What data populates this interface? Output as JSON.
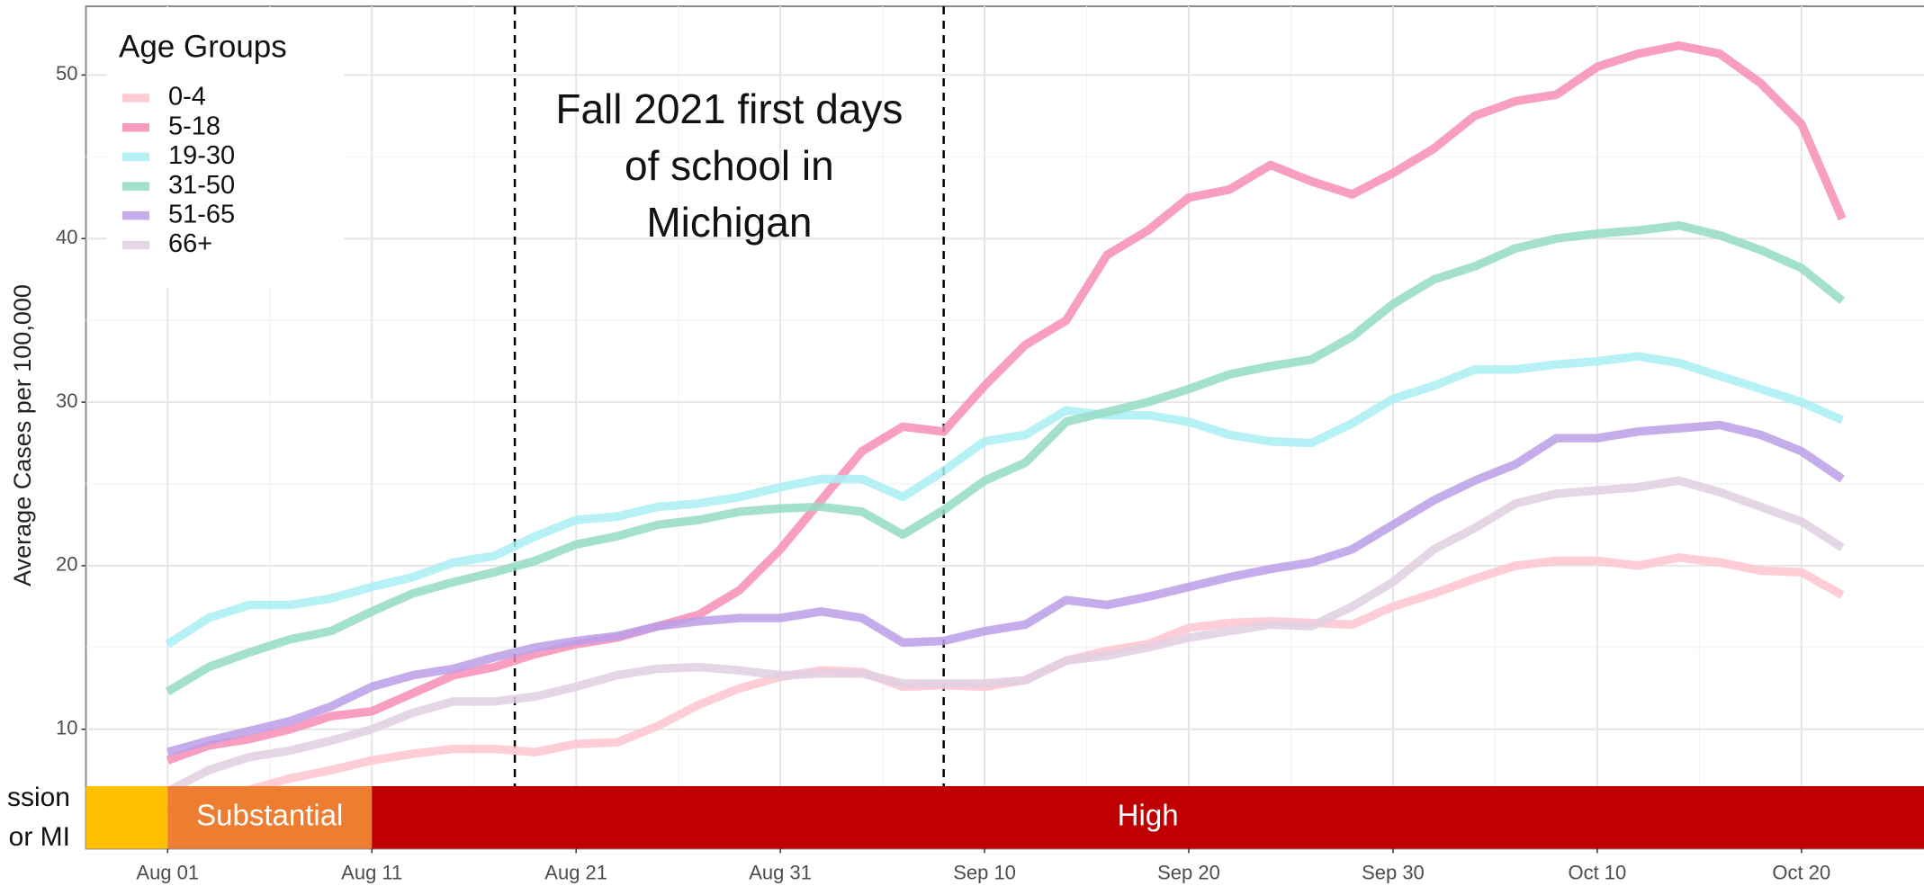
{
  "chart_data": {
    "type": "line",
    "ylabel": "Average Cases per 100,000",
    "legend_title": "Age Groups",
    "legend": "top-left",
    "grid": true,
    "minor_grid": true,
    "annotation": [
      "Fall 2021 first days",
      "of school in",
      "Michigan"
    ],
    "vlines": [
      "Aug 18",
      "Sep 08"
    ],
    "x": [
      "Aug 01",
      "Aug 03",
      "Aug 05",
      "Aug 07",
      "Aug 09",
      "Aug 11",
      "Aug 13",
      "Aug 15",
      "Aug 17",
      "Aug 19",
      "Aug 21",
      "Aug 23",
      "Aug 25",
      "Aug 27",
      "Aug 29",
      "Aug 31",
      "Sep 02",
      "Sep 04",
      "Sep 06",
      "Sep 08",
      "Sep 10",
      "Sep 12",
      "Sep 14",
      "Sep 16",
      "Sep 18",
      "Sep 20",
      "Sep 22",
      "Sep 24",
      "Sep 26",
      "Sep 28",
      "Sep 30",
      "Oct 02",
      "Oct 04",
      "Oct 06",
      "Oct 08",
      "Oct 10",
      "Oct 12",
      "Oct 14",
      "Oct 16",
      "Oct 18",
      "Oct 20",
      "Oct 22"
    ],
    "xlim": [
      "Jul 28",
      "Oct 26"
    ],
    "xticks": [
      "Aug 01",
      "Aug 11",
      "Aug 21",
      "Aug 31",
      "Sep 10",
      "Sep 20",
      "Sep 30",
      "Oct 10",
      "Oct 20"
    ],
    "ylim": [
      2.7,
      54.2
    ],
    "yticks": [
      10,
      20,
      30,
      40,
      50
    ],
    "series": [
      {
        "name": "0-4",
        "color": "#ffc4cf",
        "values": [
          5.0,
          5.6,
          6.3,
          7.0,
          7.5,
          8.1,
          8.5,
          8.8,
          8.8,
          8.6,
          9.1,
          9.2,
          10.2,
          11.5,
          12.5,
          13.2,
          13.6,
          13.5,
          12.6,
          12.7,
          12.6,
          13.0,
          14.2,
          14.8,
          15.2,
          16.2,
          16.5,
          16.6,
          16.5,
          16.4,
          17.5,
          18.3,
          19.2,
          20.0,
          20.3,
          20.3,
          20.0,
          20.5,
          20.2,
          19.7,
          19.6,
          18.2
        ]
      },
      {
        "name": "5-18",
        "color": "#f78db6",
        "values": [
          8.1,
          9.0,
          9.4,
          10.0,
          10.8,
          11.1,
          12.2,
          13.3,
          13.8,
          14.6,
          15.2,
          15.6,
          16.3,
          17.0,
          18.5,
          21.0,
          24.0,
          27.0,
          28.5,
          28.2,
          31.0,
          33.5,
          35.0,
          39.0,
          40.5,
          42.5,
          43.0,
          44.5,
          43.5,
          42.7,
          44.0,
          45.5,
          47.5,
          48.4,
          48.8,
          50.5,
          51.3,
          51.8,
          51.3,
          49.5,
          47.0,
          41.2
        ]
      },
      {
        "name": "19-30",
        "color": "#a8eef3",
        "values": [
          15.2,
          16.8,
          17.6,
          17.6,
          18.0,
          18.7,
          19.3,
          20.2,
          20.6,
          21.8,
          22.8,
          23.0,
          23.6,
          23.8,
          24.2,
          24.8,
          25.3,
          25.3,
          24.2,
          25.8,
          27.6,
          28.0,
          29.5,
          29.2,
          29.2,
          28.8,
          28.0,
          27.6,
          27.5,
          28.7,
          30.2,
          31.0,
          32.0,
          32.0,
          32.3,
          32.5,
          32.8,
          32.4,
          31.6,
          30.8,
          30.0,
          28.9
        ]
      },
      {
        "name": "31-50",
        "color": "#94dcc1",
        "values": [
          12.3,
          13.8,
          14.7,
          15.5,
          16.0,
          17.2,
          18.3,
          19.0,
          19.6,
          20.3,
          21.3,
          21.8,
          22.5,
          22.8,
          23.3,
          23.5,
          23.6,
          23.3,
          21.9,
          23.4,
          25.2,
          26.3,
          28.8,
          29.4,
          30.0,
          30.8,
          31.7,
          32.2,
          32.6,
          34.0,
          36.0,
          37.5,
          38.3,
          39.4,
          40.0,
          40.3,
          40.5,
          40.8,
          40.2,
          39.3,
          38.2,
          36.2
        ]
      },
      {
        "name": "51-65",
        "color": "#bb9ee8",
        "values": [
          8.6,
          9.3,
          9.9,
          10.5,
          11.4,
          12.6,
          13.3,
          13.7,
          14.4,
          15.0,
          15.4,
          15.7,
          16.3,
          16.6,
          16.8,
          16.8,
          17.2,
          16.8,
          15.3,
          15.4,
          16.0,
          16.4,
          17.9,
          17.6,
          18.1,
          18.7,
          19.3,
          19.8,
          20.2,
          21.0,
          22.5,
          24.0,
          25.2,
          26.2,
          27.8,
          27.8,
          28.2,
          28.4,
          28.6,
          28.0,
          27.0,
          25.3
        ]
      },
      {
        "name": "66+",
        "color": "#e0cfe2",
        "values": [
          6.2,
          7.5,
          8.3,
          8.7,
          9.3,
          10.0,
          11.0,
          11.7,
          11.7,
          12.0,
          12.6,
          13.3,
          13.7,
          13.8,
          13.6,
          13.3,
          13.4,
          13.4,
          12.8,
          12.8,
          12.8,
          13.0,
          14.2,
          14.5,
          15.0,
          15.6,
          16.0,
          16.4,
          16.3,
          17.5,
          19.0,
          21.0,
          22.3,
          23.8,
          24.4,
          24.6,
          24.8,
          25.2,
          24.5,
          23.6,
          22.7,
          21.1
        ]
      }
    ],
    "transmission": {
      "label": [
        "ssion",
        "or MI"
      ],
      "segments": [
        {
          "color": "#ffc000",
          "start": "Jul 28",
          "end": "Aug 01"
        },
        {
          "name": "Substantial",
          "color": "#ed7d31",
          "start": "Aug 01",
          "end": "Aug 11"
        },
        {
          "name": "High",
          "color": "#c00000",
          "start": "Aug 11",
          "end": "Oct 26"
        }
      ]
    }
  }
}
